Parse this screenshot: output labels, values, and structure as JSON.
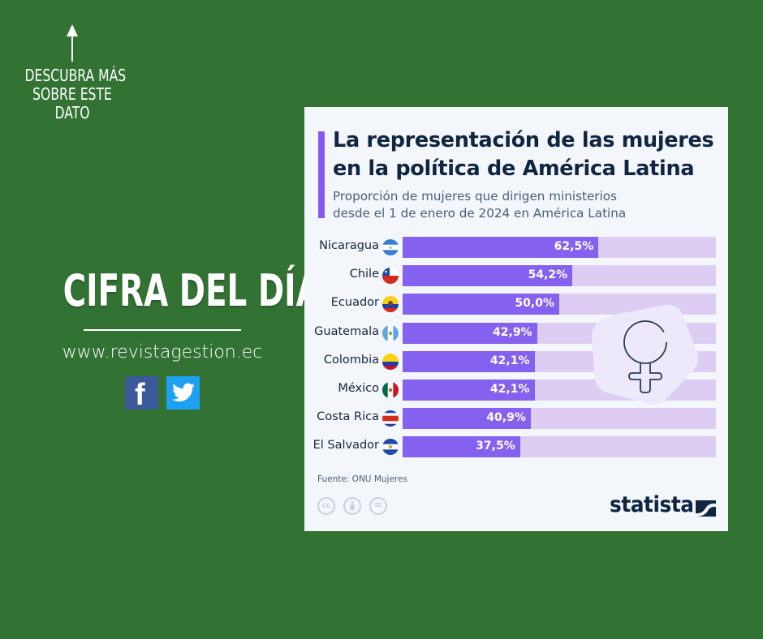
{
  "left_panel": {
    "cta_lines": [
      "DESCUBRA MÁS",
      "SOBRE ESTE",
      "DATO"
    ],
    "headline": "CIFRA DEL DÍA",
    "website": "www.revistagestion.ec",
    "social": [
      {
        "name": "facebook",
        "icon": "facebook-icon",
        "glyph": "f",
        "color": "#3b5998"
      },
      {
        "name": "twitter",
        "icon": "twitter-icon",
        "color": "#1da1f2"
      }
    ]
  },
  "colors": {
    "background": "#327334",
    "card": "#f3f6fa",
    "bar": "#8561ef",
    "track": "#ddcdf3",
    "title": "#0f2540"
  },
  "chart_data": {
    "type": "bar",
    "orientation": "horizontal",
    "title": "La representación de las mujeres en la política de América Latina",
    "title_lines": [
      "La representación de las mujeres",
      "en la política de América Latina"
    ],
    "subtitle_lines": [
      "Proporción de mujeres que dirigen ministerios",
      "desde el 1 de enero de 2024 en América Latina"
    ],
    "categories": [
      "Nicaragua",
      "Chile",
      "Ecuador",
      "Guatemala",
      "Colombia",
      "México",
      "Costa Rica",
      "El Salvador"
    ],
    "values": [
      62.5,
      54.2,
      50.0,
      42.9,
      42.1,
      42.1,
      40.9,
      37.5
    ],
    "value_labels": [
      "62,5%",
      "54,2%",
      "50,0%",
      "42,9%",
      "42,1%",
      "42,1%",
      "40,9%",
      "37,5%"
    ],
    "xlim": [
      0,
      100
    ],
    "unit": "%",
    "grid": false,
    "legend": "none",
    "source": "Fuente: ONU Mujeres",
    "brand": "statista",
    "license_icons": [
      "cc-icon",
      "by-icon",
      "nd-icon"
    ],
    "license_glyphs": [
      "cc",
      "",
      "="
    ],
    "decoration_icon": "female-symbol-icon"
  }
}
